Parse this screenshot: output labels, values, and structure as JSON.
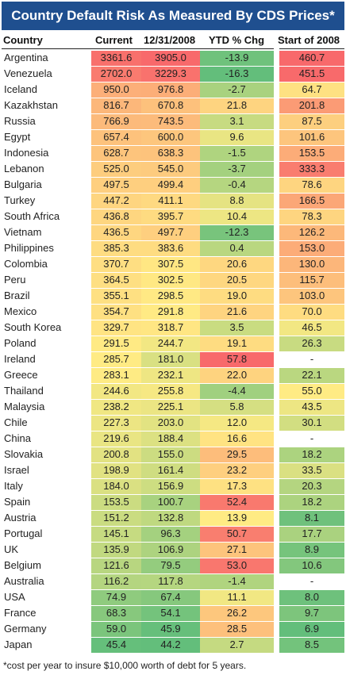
{
  "chart_data": {
    "type": "table",
    "title": "Country Default Risk As Measured By CDS Prices*",
    "columns": [
      "Country",
      "Current",
      "12/31/2008",
      "YTD % Chg",
      "Start of 2008"
    ],
    "rows": [
      {
        "country": "Argentina",
        "current": "3361.6",
        "dec2008": "3905.0",
        "ytd": "-13.9",
        "start2008": "460.7"
      },
      {
        "country": "Venezuela",
        "current": "2702.0",
        "dec2008": "3229.3",
        "ytd": "-16.3",
        "start2008": "451.5"
      },
      {
        "country": "Iceland",
        "current": "950.0",
        "dec2008": "976.8",
        "ytd": "-2.7",
        "start2008": "64.7"
      },
      {
        "country": "Kazakhstan",
        "current": "816.7",
        "dec2008": "670.8",
        "ytd": "21.8",
        "start2008": "201.8"
      },
      {
        "country": "Russia",
        "current": "766.9",
        "dec2008": "743.5",
        "ytd": "3.1",
        "start2008": "87.5"
      },
      {
        "country": "Egypt",
        "current": "657.4",
        "dec2008": "600.0",
        "ytd": "9.6",
        "start2008": "101.6"
      },
      {
        "country": "Indonesia",
        "current": "628.7",
        "dec2008": "638.3",
        "ytd": "-1.5",
        "start2008": "153.5"
      },
      {
        "country": "Lebanon",
        "current": "525.0",
        "dec2008": "545.0",
        "ytd": "-3.7",
        "start2008": "333.3"
      },
      {
        "country": "Bulgaria",
        "current": "497.5",
        "dec2008": "499.4",
        "ytd": "-0.4",
        "start2008": "78.6"
      },
      {
        "country": "Turkey",
        "current": "447.2",
        "dec2008": "411.1",
        "ytd": "8.8",
        "start2008": "166.5"
      },
      {
        "country": "South Africa",
        "current": "436.8",
        "dec2008": "395.7",
        "ytd": "10.4",
        "start2008": "78.3"
      },
      {
        "country": "Vietnam",
        "current": "436.5",
        "dec2008": "497.7",
        "ytd": "-12.3",
        "start2008": "126.2"
      },
      {
        "country": "Philippines",
        "current": "385.3",
        "dec2008": "383.6",
        "ytd": "0.4",
        "start2008": "153.0"
      },
      {
        "country": "Colombia",
        "current": "370.7",
        "dec2008": "307.5",
        "ytd": "20.6",
        "start2008": "130.0"
      },
      {
        "country": "Peru",
        "current": "364.5",
        "dec2008": "302.5",
        "ytd": "20.5",
        "start2008": "115.7"
      },
      {
        "country": "Brazil",
        "current": "355.1",
        "dec2008": "298.5",
        "ytd": "19.0",
        "start2008": "103.0"
      },
      {
        "country": "Mexico",
        "current": "354.7",
        "dec2008": "291.8",
        "ytd": "21.6",
        "start2008": "70.0"
      },
      {
        "country": "South Korea",
        "current": "329.7",
        "dec2008": "318.7",
        "ytd": "3.5",
        "start2008": "46.5"
      },
      {
        "country": "Poland",
        "current": "291.5",
        "dec2008": "244.7",
        "ytd": "19.1",
        "start2008": "26.3"
      },
      {
        "country": "Ireland",
        "current": "285.7",
        "dec2008": "181.0",
        "ytd": "57.8",
        "start2008": "-"
      },
      {
        "country": "Greece",
        "current": "283.1",
        "dec2008": "232.1",
        "ytd": "22.0",
        "start2008": "22.1"
      },
      {
        "country": "Thailand",
        "current": "244.6",
        "dec2008": "255.8",
        "ytd": "-4.4",
        "start2008": "55.0"
      },
      {
        "country": "Malaysia",
        "current": "238.2",
        "dec2008": "225.1",
        "ytd": "5.8",
        "start2008": "43.5"
      },
      {
        "country": "Chile",
        "current": "227.3",
        "dec2008": "203.0",
        "ytd": "12.0",
        "start2008": "30.1"
      },
      {
        "country": "China",
        "current": "219.6",
        "dec2008": "188.4",
        "ytd": "16.6",
        "start2008": "-"
      },
      {
        "country": "Slovakia",
        "current": "200.8",
        "dec2008": "155.0",
        "ytd": "29.5",
        "start2008": "18.2"
      },
      {
        "country": "Israel",
        "current": "198.9",
        "dec2008": "161.4",
        "ytd": "23.2",
        "start2008": "33.5"
      },
      {
        "country": "Italy",
        "current": "184.0",
        "dec2008": "156.9",
        "ytd": "17.3",
        "start2008": "20.3"
      },
      {
        "country": "Spain",
        "current": "153.5",
        "dec2008": "100.7",
        "ytd": "52.4",
        "start2008": "18.2"
      },
      {
        "country": "Austria",
        "current": "151.2",
        "dec2008": "132.8",
        "ytd": "13.9",
        "start2008": "8.1"
      },
      {
        "country": "Portugal",
        "current": "145.1",
        "dec2008": "96.3",
        "ytd": "50.7",
        "start2008": "17.7"
      },
      {
        "country": "UK",
        "current": "135.9",
        "dec2008": "106.9",
        "ytd": "27.1",
        "start2008": "8.9"
      },
      {
        "country": "Belgium",
        "current": "121.6",
        "dec2008": "79.5",
        "ytd": "53.0",
        "start2008": "10.6"
      },
      {
        "country": "Australia",
        "current": "116.2",
        "dec2008": "117.8",
        "ytd": "-1.4",
        "start2008": "-"
      },
      {
        "country": "USA",
        "current": "74.9",
        "dec2008": "67.4",
        "ytd": "11.1",
        "start2008": "8.0"
      },
      {
        "country": "France",
        "current": "68.3",
        "dec2008": "54.1",
        "ytd": "26.2",
        "start2008": "9.7"
      },
      {
        "country": "Germany",
        "current": "59.0",
        "dec2008": "45.9",
        "ytd": "28.5",
        "start2008": "6.9"
      },
      {
        "country": "Japan",
        "current": "45.4",
        "dec2008": "44.2",
        "ytd": "2.7",
        "start2008": "8.5"
      }
    ],
    "footnote": "*cost per year to insure $10,000 worth of debt for 5 years.",
    "color_scale": {
      "low": "#63be7b",
      "mid": "#ffeb84",
      "high": "#f8696b"
    }
  }
}
